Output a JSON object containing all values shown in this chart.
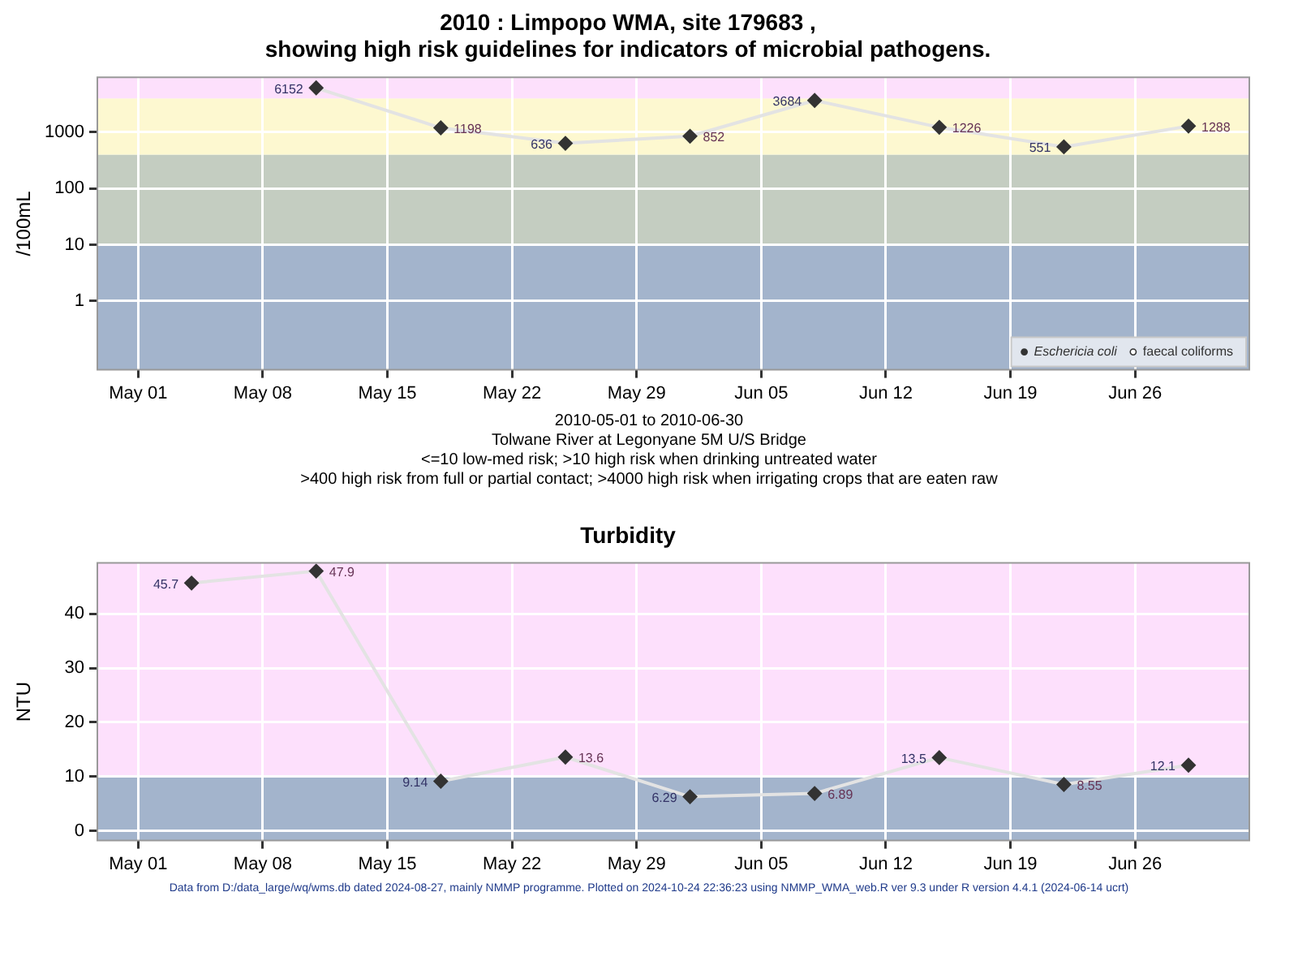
{
  "chart_data": [
    {
      "type": "line",
      "title": "2010 : Limpopo WMA, site 179683 ,\nshowing high risk guidelines for indicators of microbial pathogens.",
      "ylabel": "/100mL",
      "x": [
        "2010-05-11",
        "2010-05-18",
        "2010-05-25",
        "2010-06-01",
        "2010-06-08",
        "2010-06-15",
        "2010-06-22",
        "2010-06-29"
      ],
      "series": [
        {
          "name": "Eschericia coli",
          "color": "#333333",
          "marker": "diamond",
          "values": [
            6152,
            1198,
            636,
            852,
            3684,
            1226,
            551,
            1288
          ]
        },
        {
          "name": "faecal coliforms",
          "color": "#333333",
          "marker": "circle",
          "values": [
            null,
            null,
            null,
            null,
            null,
            null,
            null,
            null
          ]
        }
      ],
      "log": "y",
      "ylim": [
        0.06,
        9500
      ],
      "yticks": [
        1,
        10,
        100,
        1000
      ],
      "xlim": [
        "2010-04-28T17:00",
        "2010-07-02T10:00"
      ],
      "xticks": [
        {
          "value": "2010-05-01",
          "label": "May 01"
        },
        {
          "value": "2010-05-08",
          "label": "May 08"
        },
        {
          "value": "2010-05-15",
          "label": "May 15"
        },
        {
          "value": "2010-05-22",
          "label": "May 22"
        },
        {
          "value": "2010-05-29",
          "label": "May 29"
        },
        {
          "value": "2010-06-05",
          "label": "Jun 05"
        },
        {
          "value": "2010-06-12",
          "label": "Jun 12"
        },
        {
          "value": "2010-06-19",
          "label": "Jun 19"
        },
        {
          "value": "2010-06-26",
          "label": "Jun 26"
        }
      ],
      "grid": true,
      "legend": "bottom right",
      "data_labels": true,
      "bands": [
        {
          "axis": "y",
          "from": 0.06,
          "to": 10,
          "color": "#a3b4cc"
        },
        {
          "axis": "y",
          "from": 10,
          "to": 400,
          "color": "#c4cdc1"
        },
        {
          "axis": "y",
          "from": 400,
          "to": 4000,
          "color": "#fdf8d0"
        },
        {
          "axis": "y",
          "from": 4000,
          "to": 9500,
          "color": "#fde0fc"
        }
      ],
      "annotations": [
        "2010-05-01 to 2010-06-30",
        "Tolwane River at Legonyane 5M U/S Bridge",
        "<=10 low-med risk; >10 high risk when drinking untreated water",
        ">400 high risk from full or partial contact; >4000 high risk when irrigating crops that are eaten raw"
      ]
    },
    {
      "type": "line",
      "title": "Turbidity",
      "ylabel": "NTU",
      "x": [
        "2010-05-04",
        "2010-05-11",
        "2010-05-18",
        "2010-05-25",
        "2010-06-01",
        "2010-06-08",
        "2010-06-15",
        "2010-06-22",
        "2010-06-29"
      ],
      "series": [
        {
          "color": "#333333",
          "marker": "diamond",
          "values": [
            45.7,
            47.9,
            9.14,
            13.6,
            6.29,
            6.89,
            13.5,
            8.55,
            12.1
          ]
        }
      ],
      "ylim": [
        -1.8,
        49.4
      ],
      "yticks": [
        0,
        10,
        20,
        30,
        40
      ],
      "xlim": [
        "2010-04-28T17:00",
        "2010-07-02T10:00"
      ],
      "xticks": [
        {
          "value": "2010-05-01",
          "label": "May 01"
        },
        {
          "value": "2010-05-08",
          "label": "May 08"
        },
        {
          "value": "2010-05-15",
          "label": "May 15"
        },
        {
          "value": "2010-05-22",
          "label": "May 22"
        },
        {
          "value": "2010-05-29",
          "label": "May 29"
        },
        {
          "value": "2010-06-05",
          "label": "Jun 05"
        },
        {
          "value": "2010-06-12",
          "label": "Jun 12"
        },
        {
          "value": "2010-06-19",
          "label": "Jun 19"
        },
        {
          "value": "2010-06-26",
          "label": "Jun 26"
        }
      ],
      "grid": true,
      "data_labels": true,
      "bands": [
        {
          "axis": "y",
          "from": -1.8,
          "to": 10,
          "color": "#a3b4cc"
        },
        {
          "axis": "y",
          "from": 10,
          "to": 49.4,
          "color": "#fde0fc"
        }
      ],
      "annotations": [
        "Data from D:/data_large/wq/wms.db dated 2024-08-27, mainly NMMP programme. Plotted on 2024-10-24 22:36:23 using NMMP_WMA_web.R ver 9.3 under R version 4.4.1 (2024-06-14 ucrt)"
      ]
    }
  ]
}
